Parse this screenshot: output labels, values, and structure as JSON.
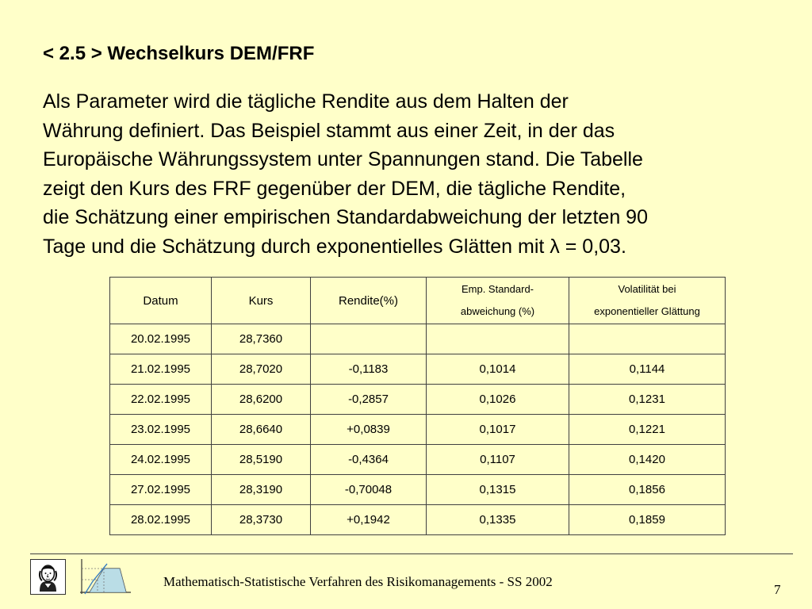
{
  "slide": {
    "title": "< 2.5 > Wechselkurs DEM/FRF",
    "body_lines": [
      "Als Parameter wird die tägliche Rendite aus dem Halten der",
      "Währung definiert. Das Beispiel stammt aus einer Zeit, in der das",
      "Europäische Währungssystem unter Spannungen stand. Die Tabelle",
      "zeigt den Kurs des FRF gegenüber der DEM, die tägliche Rendite,",
      "die Schätzung einer empirischen Standardabweichung der letzten 90",
      "Tage und die Schätzung durch exponentielles Glätten mit λ = 0,03."
    ]
  },
  "table": {
    "headers": [
      [
        "Datum"
      ],
      [
        "Kurs"
      ],
      [
        "Rendite(%)"
      ],
      [
        "Emp. Standard-",
        "abweichung (%)"
      ],
      [
        "Volatilität bei",
        "exponentieller Glättung"
      ]
    ],
    "rows": [
      [
        "20.02.1995",
        "28,7360",
        "",
        "",
        ""
      ],
      [
        "21.02.1995",
        "28,7020",
        "-0,1183",
        "0,1014",
        "0,1144"
      ],
      [
        "22.02.1995",
        "28,6200",
        "-0,2857",
        "0,1026",
        "0,1231"
      ],
      [
        "23.02.1995",
        "28,6640",
        "+0,0839",
        "0,1017",
        "0,1221"
      ],
      [
        "24.02.1995",
        "28,5190",
        "-0,4364",
        "0,1107",
        "0,1420"
      ],
      [
        "27.02.1995",
        "28,3190",
        "-0,70048",
        "0,1315",
        "0,1856"
      ],
      [
        "28.02.1995",
        "28,3730",
        "+0,1942",
        "0,1335",
        "0,1859"
      ]
    ]
  },
  "footer": {
    "text": "Mathematisch-Statistische Verfahren des Risikomanagements - SS 2002",
    "page": "7",
    "logo_left": "goethe-portrait-icon",
    "logo_right": "distribution-chart-icon"
  }
}
